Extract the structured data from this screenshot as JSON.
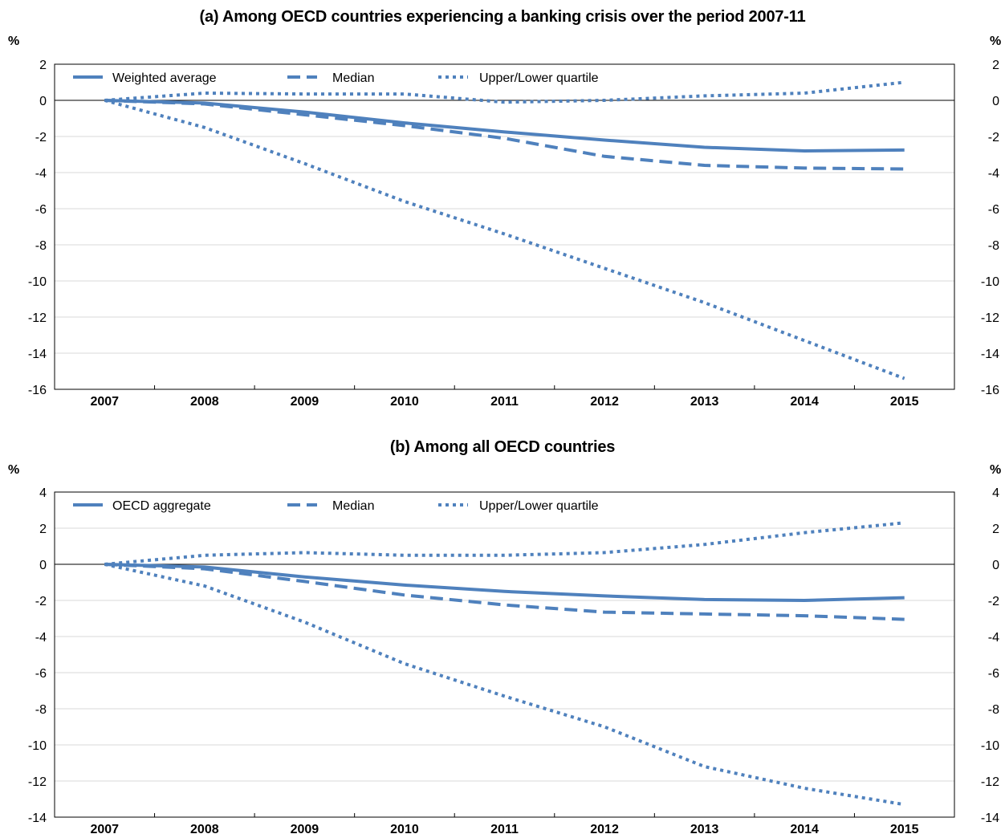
{
  "charts": [
    {
      "title": "(a) Among OECD countries experiencing a banking crisis over the period 2007-11",
      "unit_left": "%",
      "unit_right": "%",
      "legend": [
        "Weighted average",
        "Median",
        "Upper/Lower quartile"
      ]
    },
    {
      "title": "(b) Among all OECD countries",
      "unit_left": "%",
      "unit_right": "%",
      "legend": [
        "OECD aggregate",
        "Median",
        "Upper/Lower quartile"
      ]
    }
  ],
  "chart_data": [
    {
      "type": "line",
      "title": "(a) Among OECD countries experiencing a banking crisis over the period 2007-11",
      "ylabel": "%",
      "ylabel_right": "%",
      "x": [
        "2007",
        "2008",
        "2009",
        "2010",
        "2011",
        "2012",
        "2013",
        "2014",
        "2015"
      ],
      "ylim": [
        -16,
        2
      ],
      "yticks": [
        2,
        0,
        -2,
        -4,
        -6,
        -8,
        -10,
        -12,
        -14,
        -16
      ],
      "grid": true,
      "legend_position": "top",
      "color": "#4f81bd",
      "series": [
        {
          "name": "Weighted average",
          "style": "solid",
          "values": [
            0,
            -0.15,
            -0.65,
            -1.25,
            -1.75,
            -2.2,
            -2.6,
            -2.8,
            -2.75
          ]
        },
        {
          "name": "Median",
          "style": "dashed",
          "values": [
            0,
            -0.2,
            -0.8,
            -1.4,
            -2.1,
            -3.1,
            -3.6,
            -3.75,
            -3.8
          ]
        },
        {
          "name": "Upper/Lower quartile",
          "style": "dotted",
          "values": [
            0,
            0.4,
            0.35,
            0.35,
            -0.1,
            0.0,
            0.25,
            0.4,
            1.0
          ]
        },
        {
          "name": "",
          "style": "dotted",
          "values": [
            0,
            -1.5,
            -3.5,
            -5.6,
            -7.4,
            -9.3,
            -11.2,
            -13.3,
            -15.4
          ]
        }
      ]
    },
    {
      "type": "line",
      "title": "(b) Among all OECD countries",
      "ylabel": "%",
      "ylabel_right": "%",
      "x": [
        "2007",
        "2008",
        "2009",
        "2010",
        "2011",
        "2012",
        "2013",
        "2014",
        "2015"
      ],
      "ylim": [
        -14,
        4
      ],
      "yticks": [
        4,
        2,
        0,
        -2,
        -4,
        -6,
        -8,
        -10,
        -12,
        -14
      ],
      "grid": true,
      "legend_position": "top",
      "color": "#4f81bd",
      "series": [
        {
          "name": "OECD aggregate",
          "style": "solid",
          "values": [
            0,
            -0.15,
            -0.7,
            -1.15,
            -1.5,
            -1.75,
            -1.95,
            -2.0,
            -1.85
          ]
        },
        {
          "name": "Median",
          "style": "dashed",
          "values": [
            0,
            -0.25,
            -0.95,
            -1.7,
            -2.25,
            -2.65,
            -2.75,
            -2.85,
            -3.05
          ]
        },
        {
          "name": "Upper/Lower quartile",
          "style": "dotted",
          "values": [
            0,
            0.5,
            0.65,
            0.5,
            0.5,
            0.65,
            1.1,
            1.75,
            2.3
          ]
        },
        {
          "name": "",
          "style": "dotted",
          "values": [
            0,
            -1.2,
            -3.2,
            -5.5,
            -7.3,
            -9.0,
            -11.2,
            -12.4,
            -13.3
          ]
        }
      ]
    }
  ]
}
